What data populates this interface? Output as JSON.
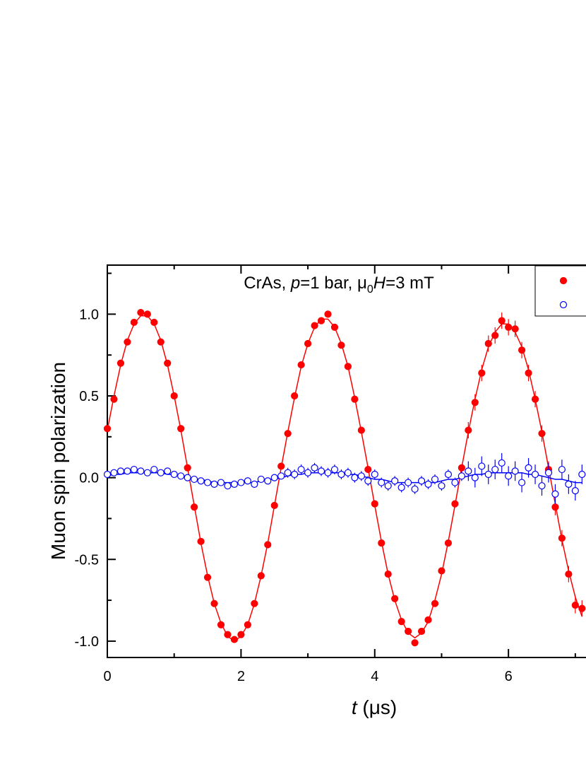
{
  "chart_data": {
    "type": "scatter",
    "title": [
      "CrAs, ",
      "p",
      "=1 bar, μ",
      "0",
      "H",
      "=3 mT"
    ],
    "xlabel": [
      "t",
      " (μs)"
    ],
    "ylabel": "Muon spin polarization",
    "xlim": [
      0,
      7.16
    ],
    "ylim": [
      -1.1,
      1.3
    ],
    "xticks": [
      0,
      2,
      4,
      6
    ],
    "xminor": [
      1,
      3,
      5,
      7
    ],
    "yticks": [
      {
        "value": 1,
        "label": "1.0"
      },
      {
        "value": 0.5,
        "label": "0.5"
      },
      {
        "value": 0,
        "label": "0.0"
      },
      {
        "value": -0.5,
        "label": "-0.5"
      },
      {
        "value": -1,
        "label": "-1.0"
      }
    ],
    "yminor": [
      1.25,
      0.75,
      0.25,
      -0.25,
      -0.75
    ],
    "x": [
      0,
      0.1,
      0.2,
      0.3,
      0.4,
      0.5,
      0.6,
      0.7,
      0.8,
      0.9,
      1,
      1.1,
      1.2,
      1.3,
      1.4,
      1.5,
      1.6,
      1.7,
      1.8,
      1.9,
      2,
      2.1,
      2.2,
      2.3,
      2.4,
      2.5,
      2.6,
      2.7,
      2.8,
      2.9,
      3,
      3.1,
      3.2,
      3.3,
      3.4,
      3.5,
      3.6,
      3.7,
      3.8,
      3.9,
      4,
      4.1,
      4.2,
      4.3,
      4.4,
      4.5,
      4.6,
      4.7,
      4.8,
      4.9,
      5,
      5.1,
      5.2,
      5.3,
      5.4,
      5.5,
      5.6,
      5.7,
      5.8,
      5.9,
      6,
      6.1,
      6.2,
      6.3,
      6.4,
      6.5,
      6.6,
      6.7,
      6.8,
      6.9,
      7,
      7.1
    ],
    "series": [
      {
        "color": "#ff0000",
        "marker": "filled",
        "values": [
          0.3,
          0.48,
          0.7,
          0.83,
          0.95,
          1.01,
          1.0,
          0.95,
          0.83,
          0.7,
          0.5,
          0.3,
          0.06,
          -0.18,
          -0.39,
          -0.61,
          -0.77,
          -0.9,
          -0.96,
          -0.99,
          -0.96,
          -0.9,
          -0.77,
          -0.6,
          -0.41,
          -0.17,
          0.07,
          0.27,
          0.5,
          0.69,
          0.82,
          0.93,
          0.96,
          1.0,
          0.92,
          0.81,
          0.68,
          0.48,
          0.29,
          0.05,
          -0.16,
          -0.4,
          -0.59,
          -0.74,
          -0.88,
          -0.94,
          -1.01,
          -0.94,
          -0.87,
          -0.77,
          -0.57,
          -0.4,
          -0.16,
          0.06,
          0.29,
          0.46,
          0.64,
          0.82,
          0.87,
          0.96,
          0.92,
          0.91,
          0.78,
          0.64,
          0.48,
          0.27,
          0.05,
          -0.18,
          -0.37,
          -0.59,
          -0.78,
          -0.8
        ],
        "errors": [
          0.01,
          0.01,
          0.01,
          0.01,
          0.01,
          0.01,
          0.01,
          0.01,
          0.01,
          0.01,
          0.01,
          0.01,
          0.01,
          0.01,
          0.01,
          0.01,
          0.01,
          0.01,
          0.01,
          0.01,
          0.01,
          0.01,
          0.01,
          0.01,
          0.01,
          0.01,
          0.01,
          0.02,
          0.02,
          0.02,
          0.02,
          0.02,
          0.02,
          0.02,
          0.02,
          0.02,
          0.02,
          0.02,
          0.02,
          0.02,
          0.02,
          0.02,
          0.02,
          0.02,
          0.02,
          0.02,
          0.02,
          0.02,
          0.02,
          0.02,
          0.02,
          0.02,
          0.02,
          0.02,
          0.05,
          0.05,
          0.05,
          0.05,
          0.05,
          0.05,
          0.05,
          0.05,
          0.05,
          0.05,
          0.05,
          0.05,
          0.05,
          0.05,
          0.05,
          0.05,
          0.05,
          0.05
        ]
      },
      {
        "color": "#0000ff",
        "marker": "open",
        "values": [
          0.02,
          0.03,
          0.04,
          0.04,
          0.05,
          0.04,
          0.03,
          0.05,
          0.03,
          0.04,
          0.02,
          0.01,
          0.0,
          -0.01,
          -0.02,
          -0.03,
          -0.04,
          -0.03,
          -0.05,
          -0.04,
          -0.03,
          -0.02,
          -0.04,
          -0.01,
          -0.02,
          0.0,
          0.01,
          0.03,
          0.02,
          0.05,
          0.03,
          0.06,
          0.04,
          0.03,
          0.05,
          0.02,
          0.03,
          0.0,
          0.01,
          -0.02,
          0.02,
          -0.03,
          -0.05,
          -0.02,
          -0.06,
          -0.03,
          -0.07,
          -0.02,
          -0.04,
          -0.01,
          -0.05,
          0.02,
          -0.03,
          0.01,
          0.04,
          0.0,
          0.07,
          0.02,
          0.05,
          0.09,
          0.01,
          0.04,
          -0.03,
          0.06,
          0.02,
          -0.05,
          0.03,
          -0.1,
          0.05,
          -0.04,
          -0.08,
          0.02
        ],
        "errors": [
          0.02,
          0.02,
          0.02,
          0.02,
          0.02,
          0.02,
          0.02,
          0.02,
          0.02,
          0.02,
          0.02,
          0.02,
          0.02,
          0.02,
          0.02,
          0.02,
          0.02,
          0.02,
          0.02,
          0.02,
          0.02,
          0.02,
          0.02,
          0.02,
          0.02,
          0.02,
          0.02,
          0.03,
          0.03,
          0.03,
          0.03,
          0.03,
          0.03,
          0.03,
          0.03,
          0.03,
          0.03,
          0.03,
          0.03,
          0.03,
          0.03,
          0.03,
          0.03,
          0.03,
          0.03,
          0.03,
          0.03,
          0.03,
          0.03,
          0.03,
          0.03,
          0.03,
          0.03,
          0.03,
          0.06,
          0.06,
          0.06,
          0.06,
          0.06,
          0.06,
          0.06,
          0.06,
          0.06,
          0.06,
          0.06,
          0.06,
          0.06,
          0.06,
          0.06,
          0.06,
          0.06,
          0.06
        ]
      }
    ],
    "fits": [
      {
        "color": "#ff0000",
        "values": [
          0.29,
          0.5,
          0.69,
          0.84,
          0.94,
          0.99,
          0.99,
          0.94,
          0.84,
          0.69,
          0.5,
          0.29,
          0.06,
          -0.17,
          -0.4,
          -0.6,
          -0.77,
          -0.89,
          -0.97,
          -1.0,
          -0.97,
          -0.9,
          -0.77,
          -0.6,
          -0.4,
          -0.17,
          0.06,
          0.28,
          0.49,
          0.68,
          0.82,
          0.92,
          0.97,
          0.97,
          0.92,
          0.82,
          0.68,
          0.49,
          0.28,
          0.06,
          -0.17,
          -0.39,
          -0.59,
          -0.75,
          -0.87,
          -0.95,
          -0.98,
          -0.95,
          -0.88,
          -0.75,
          -0.59,
          -0.39,
          -0.17,
          0.06,
          0.28,
          0.48,
          0.66,
          0.8,
          0.89,
          0.94,
          0.94,
          0.89,
          0.8,
          0.66,
          0.48,
          0.28,
          0.06,
          -0.16,
          -0.38,
          -0.57,
          -0.73,
          -0.85
        ]
      },
      {
        "color": "#0000ff",
        "values": [
          0.01,
          0.02,
          0.02,
          0.03,
          0.03,
          0.03,
          0.03,
          0.03,
          0.03,
          0.02,
          0.02,
          0.01,
          0.0,
          -0.01,
          -0.01,
          -0.02,
          -0.03,
          -0.03,
          -0.03,
          -0.03,
          -0.03,
          -0.03,
          -0.03,
          -0.02,
          -0.01,
          -0.01,
          0.0,
          0.01,
          0.02,
          0.02,
          0.03,
          0.03,
          0.03,
          0.03,
          0.03,
          0.03,
          0.02,
          0.02,
          0.01,
          0.0,
          -0.01,
          -0.01,
          -0.02,
          -0.03,
          -0.03,
          -0.03,
          -0.03,
          -0.03,
          -0.03,
          -0.03,
          -0.02,
          -0.01,
          -0.01,
          0.0,
          0.01,
          0.02,
          0.02,
          0.03,
          0.03,
          0.03,
          0.03,
          0.03,
          0.03,
          0.02,
          0.02,
          0.01,
          0.0,
          -0.01,
          -0.01,
          -0.02,
          -0.03,
          -0.03
        ]
      }
    ]
  }
}
